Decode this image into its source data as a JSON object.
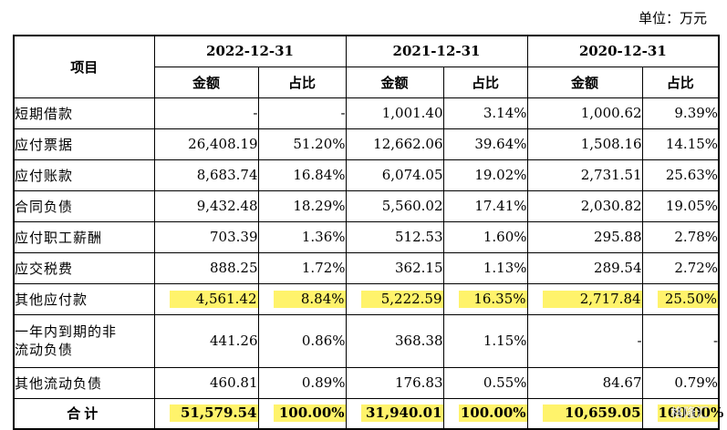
{
  "unit": "单位：万元",
  "header": {
    "item_label": "项目",
    "periods": [
      "2022-12-31",
      "2021-12-31",
      "2020-12-31"
    ],
    "amount_label": "金额",
    "share_label": "占比"
  },
  "rows": [
    {
      "label": "短期借款",
      "values": [
        "-",
        "-",
        "1,001.40",
        "3.14%",
        "1,000.62",
        "9.39%"
      ]
    },
    {
      "label": "应付票据",
      "values": [
        "26,408.19",
        "51.20%",
        "12,662.06",
        "39.64%",
        "1,508.16",
        "14.15%"
      ]
    },
    {
      "label": "应付账款",
      "values": [
        "8,683.74",
        "16.84%",
        "6,074.05",
        "19.02%",
        "2,731.51",
        "25.63%"
      ]
    },
    {
      "label": "合同负债",
      "values": [
        "9,432.48",
        "18.29%",
        "5,560.02",
        "17.41%",
        "2,030.82",
        "19.05%"
      ]
    },
    {
      "label": "应付职工薪酬",
      "values": [
        "703.39",
        "1.36%",
        "512.53",
        "1.60%",
        "295.88",
        "2.78%"
      ]
    },
    {
      "label": "应交税费",
      "values": [
        "888.25",
        "1.72%",
        "362.15",
        "1.13%",
        "289.54",
        "2.72%"
      ]
    },
    {
      "label": "其他应付款",
      "values": [
        "4,561.42",
        "8.84%",
        "5,222.59",
        "16.35%",
        "2,717.84",
        "25.50%"
      ],
      "highlight": true
    },
    {
      "label_line1": "一年内到期的非",
      "label_line2": "流动负债",
      "values": [
        "441.26",
        "0.86%",
        "368.38",
        "1.15%",
        "-",
        "-"
      ]
    },
    {
      "label": "其他流动负债",
      "values": [
        "460.81",
        "0.89%",
        "176.83",
        "0.55%",
        "84.67",
        "0.79%"
      ]
    }
  ],
  "total": {
    "label": "合计",
    "values": [
      "51,579.54",
      "100.00%",
      "31,940.01",
      "100.00%",
      "10,659.05",
      "100.00%"
    ]
  },
  "colors": {
    "highlight": "#fff36b"
  },
  "watermark": "格隆汇"
}
